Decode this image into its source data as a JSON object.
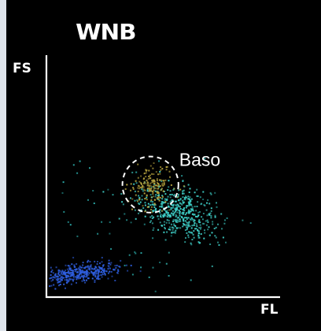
{
  "chart_data": {
    "type": "scatter",
    "title": "WNB",
    "xlabel": "FL",
    "ylabel": "FS",
    "xlim": [
      0,
      100
    ],
    "ylim": [
      0,
      100
    ],
    "grid": false,
    "legend": "none",
    "series": [
      {
        "key": "lymphocyte-neutrophil-cluster",
        "color": "#2f5fe0",
        "cx": 13,
        "cy": 10,
        "sx": 9,
        "sy": 1.8,
        "n": 420,
        "tilt": 0.12
      },
      {
        "key": "monocyte-cluster",
        "color": "#3fd0c8",
        "cx": 56,
        "cy": 35,
        "sx": 8.5,
        "sy": 5.5,
        "n": 520,
        "tilt": -0.25
      },
      {
        "key": "baso-cluster",
        "color": "#b9a640",
        "cx": 44.5,
        "cy": 46.5,
        "sx": 4.2,
        "sy": 4.2,
        "n": 170,
        "tilt": 0
      },
      {
        "key": "scatter-debris",
        "color": "#2aa7a5",
        "cx": 40,
        "cy": 30,
        "sx": 18,
        "sy": 14,
        "n": 60,
        "tilt": 0
      }
    ],
    "annotations": [
      {
        "text": "Baso",
        "gate": "circle",
        "cx": 44.5,
        "cy": 46.5,
        "r": 12
      }
    ]
  }
}
